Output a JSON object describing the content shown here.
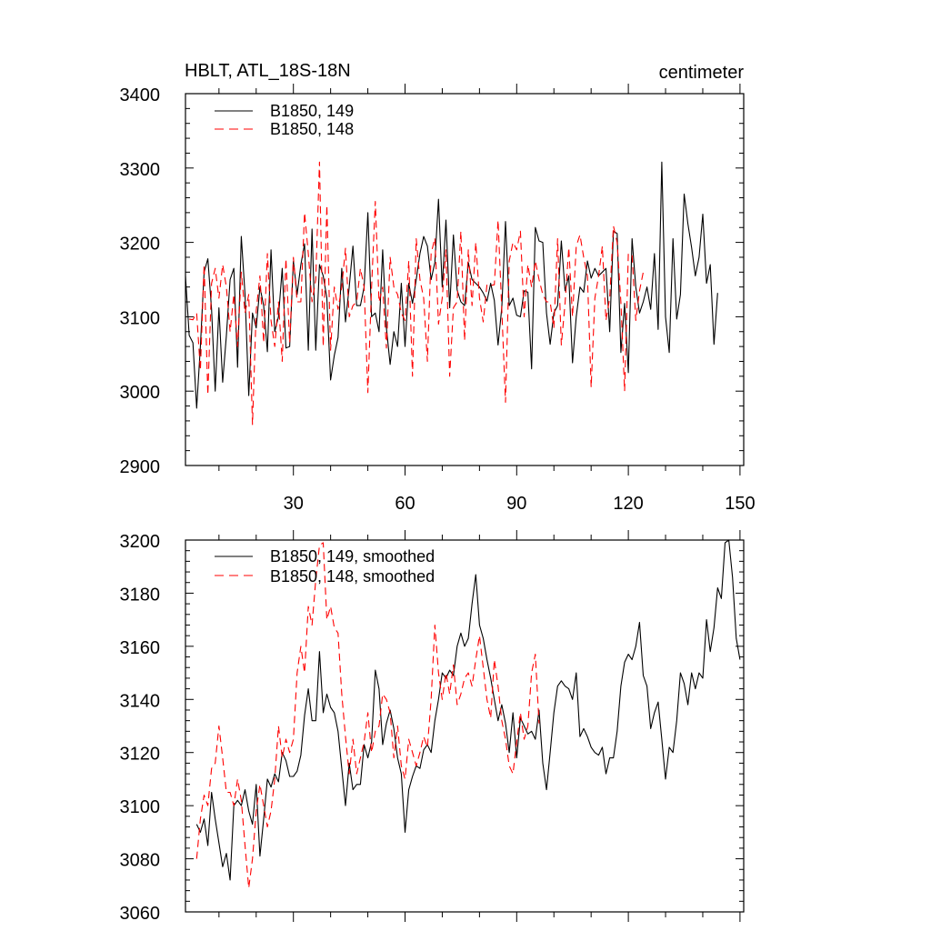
{
  "chart_data": [
    {
      "type": "line",
      "title": "HBLT, ATL_18S-18N",
      "units": "centimeter",
      "xlim": [
        1,
        151
      ],
      "ylim": [
        2900,
        3400
      ],
      "xticks": [
        30,
        60,
        90,
        120,
        150
      ],
      "yticks": [
        2900,
        3000,
        3100,
        3200,
        3300,
        3400
      ],
      "legend_position": "top-left",
      "series": [
        {
          "name": "B1850, 149",
          "color": "#000000",
          "dash": "solid",
          "x_start": 1,
          "values": [
            3155,
            3075,
            3065,
            2977,
            3060,
            3160,
            3178,
            3110,
            3000,
            3112,
            3012,
            3075,
            3150,
            3165,
            3032,
            3208,
            3130,
            2994,
            3105,
            3085,
            3140,
            3115,
            3053,
            3190,
            3080,
            3100,
            3165,
            3058,
            3060,
            3175,
            3130,
            3170,
            3198,
            3055,
            3218,
            3055,
            3170,
            3155,
            3125,
            3015,
            3048,
            3072,
            3165,
            3093,
            3140,
            3195,
            3115,
            3115,
            3140,
            3240,
            3100,
            3105,
            3080,
            3190,
            3085,
            3036,
            3080,
            3060,
            3145,
            3060,
            3145,
            3118,
            3150,
            3185,
            3208,
            3195,
            3150,
            3173,
            3258,
            3140,
            3230,
            3112,
            3210,
            3136,
            3120,
            3115,
            3173,
            3150,
            3145,
            3140,
            3132,
            3121,
            3145,
            3122,
            3062,
            3112,
            3228,
            3115,
            3125,
            3102,
            3100,
            3135,
            3133,
            3030,
            3220,
            3202,
            3200,
            3105,
            3063,
            3105,
            3115,
            3202,
            3135,
            3155,
            3038,
            3100,
            3140,
            3133,
            3175,
            3152,
            3165,
            3155,
            3160,
            3165,
            3080,
            3215,
            3212,
            3052,
            3118,
            3025,
            3205,
            3140,
            3105,
            3120,
            3140,
            3110,
            3185,
            3083,
            3308,
            3100,
            3052,
            3205,
            3097,
            3130,
            3265,
            3225,
            3193,
            3155,
            3180,
            3238,
            3145,
            3170,
            3063,
            3132
          ]
        },
        {
          "name": "B1850, 148",
          "color": "#ff0000",
          "dash": "dashed",
          "x_start": 2,
          "values": [
            3097,
            3096,
            3105,
            3028,
            3170,
            2995,
            3145,
            3165,
            3125,
            3170,
            3140,
            3080,
            3130,
            3060,
            3160,
            3105,
            3130,
            2955,
            3108,
            3155,
            3065,
            3185,
            3095,
            3060,
            3120,
            3040,
            3178,
            3065,
            3180,
            3120,
            3120,
            3240,
            3185,
            3120,
            3150,
            3308,
            3060,
            3250,
            3055,
            3140,
            3110,
            3140,
            3192,
            3100,
            3115,
            3120,
            3165,
            3140,
            2998,
            3140,
            3255,
            3120,
            3140,
            3058,
            3180,
            3140,
            3130,
            3105,
            3095,
            3175,
            3020,
            3205,
            3150,
            3125,
            3040,
            3185,
            3206,
            3090,
            3125,
            3190,
            3020,
            3112,
            3120,
            3215,
            3068,
            3190,
            3115,
            3200,
            3125,
            3093,
            3143,
            3142,
            3143,
            3230,
            3110,
            2985,
            3175,
            3200,
            3190,
            3215,
            3100,
            3170,
            3140,
            3175,
            3150,
            3130,
            3120,
            3120,
            3085,
            3205,
            3062,
            3118,
            3193,
            3100,
            3195,
            3210,
            3180,
            3155,
            3005,
            3125,
            3155,
            3195,
            3095,
            3125,
            3222,
            3200,
            3120,
            3000,
            3185,
            3183,
            3095,
            3135,
            3160
          ]
        }
      ]
    },
    {
      "type": "line",
      "title": "",
      "xlim": [
        1,
        151
      ],
      "ylim": [
        3060,
        3200
      ],
      "xticks": [
        30,
        60,
        90,
        120,
        150
      ],
      "yticks": [
        3060,
        3080,
        3100,
        3120,
        3140,
        3160,
        3180,
        3200
      ],
      "legend_position": "top-left",
      "series": [
        {
          "name": "B1850, 149, smoothed",
          "color": "#000000",
          "dash": "solid",
          "x_start": 4,
          "values": [
            3093,
            3090,
            3095,
            3085,
            3105,
            3095,
            3086,
            3077,
            3082,
            3072,
            3100,
            3102,
            3100,
            3106,
            3098,
            3093,
            3108,
            3081,
            3095,
            3110,
            3107,
            3112,
            3109,
            3120,
            3117,
            3111,
            3111,
            3113,
            3119,
            3134,
            3144,
            3132,
            3132,
            3158,
            3135,
            3142,
            3137,
            3135,
            3128,
            3114,
            3100,
            3116,
            3106,
            3108,
            3108,
            3123,
            3118,
            3124,
            3151,
            3144,
            3123,
            3131,
            3136,
            3129,
            3118,
            3112,
            3090,
            3106,
            3111,
            3115,
            3114,
            3121,
            3123,
            3120,
            3132,
            3140,
            3150,
            3148,
            3151,
            3149,
            3160,
            3165,
            3160,
            3163,
            3176,
            3187,
            3168,
            3163,
            3155,
            3148,
            3140,
            3132,
            3138,
            3131,
            3120,
            3135,
            3118,
            3133,
            3130,
            3127,
            3128,
            3125,
            3136,
            3116,
            3106,
            3120,
            3135,
            3145,
            3147,
            3145,
            3144,
            3140,
            3150,
            3126,
            3129,
            3126,
            3122,
            3120,
            3119,
            3122,
            3112,
            3118,
            3118,
            3128,
            3145,
            3154,
            3157,
            3155,
            3160,
            3169,
            3149,
            3145,
            3129,
            3135,
            3139,
            3125,
            3110,
            3122,
            3120,
            3132,
            3150,
            3146,
            3138,
            3150,
            3144,
            3150,
            3148,
            3170,
            3158,
            3167,
            3182,
            3178,
            3199,
            3200,
            3186,
            3163,
            3155
          ]
        },
        {
          "name": "B1850, 148, smoothed",
          "color": "#ff0000",
          "dash": "dashed",
          "x_start": 4,
          "values": [
            3080,
            3095,
            3104,
            3100,
            3114,
            3116,
            3130,
            3118,
            3105,
            3105,
            3100,
            3110,
            3102,
            3085,
            3069,
            3080,
            3098,
            3108,
            3100,
            3092,
            3098,
            3110,
            3130,
            3118,
            3125,
            3120,
            3125,
            3150,
            3160,
            3150,
            3175,
            3168,
            3185,
            3198,
            3199,
            3170,
            3175,
            3167,
            3165,
            3142,
            3126,
            3112,
            3125,
            3112,
            3118,
            3124,
            3135,
            3120,
            3128,
            3130,
            3142,
            3140,
            3135,
            3118,
            3130,
            3115,
            3110,
            3125,
            3120,
            3115,
            3120,
            3126,
            3122,
            3140,
            3168,
            3150,
            3140,
            3150,
            3142,
            3153,
            3138,
            3142,
            3148,
            3150,
            3145,
            3155,
            3164,
            3152,
            3140,
            3133,
            3155,
            3145,
            3132,
            3125,
            3115,
            3112,
            3124,
            3135,
            3125,
            3130,
            3150,
            3157,
            3131
          ]
        }
      ]
    }
  ]
}
